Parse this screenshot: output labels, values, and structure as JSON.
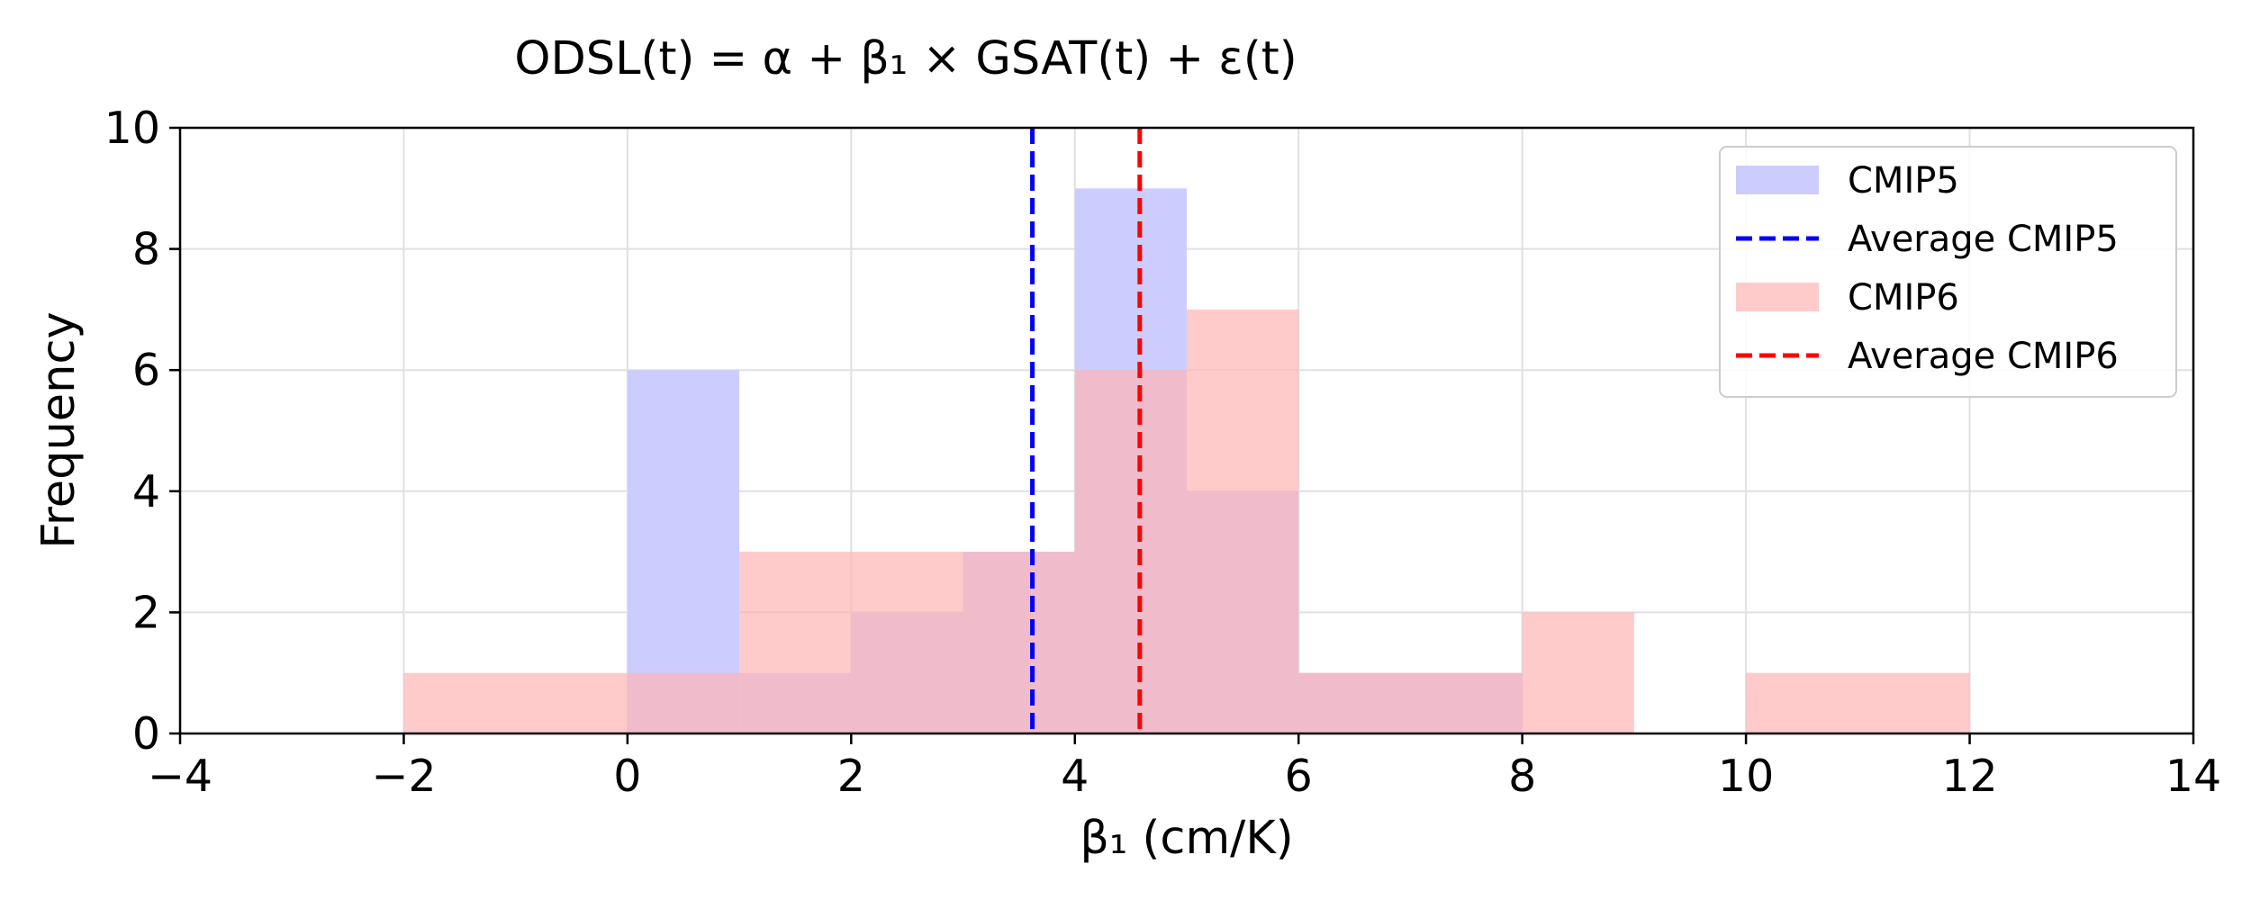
{
  "chart_data": {
    "type": "bar",
    "title": "ODSL(t) = α + β₁ × GSAT(t) + ε(t)",
    "xlabel": "β₁ (cm/K)",
    "ylabel": "Frequency",
    "xlim": [
      -4,
      14
    ],
    "ylim": [
      0,
      10
    ],
    "xticks": [
      "−4",
      "−2",
      "0",
      "2",
      "4",
      "6",
      "8",
      "10",
      "12",
      "14"
    ],
    "yticks": [
      "0",
      "2",
      "4",
      "6",
      "8",
      "10"
    ],
    "grid": true,
    "legend_position": "top-right",
    "series": [
      {
        "name": "CMIP5",
        "color": "#ccccff",
        "bins": [
          {
            "x0": 0,
            "x1": 1,
            "count": 6
          },
          {
            "x0": 1,
            "x1": 2,
            "count": 1
          },
          {
            "x0": 2,
            "x1": 3,
            "count": 2
          },
          {
            "x0": 3,
            "x1": 4,
            "count": 3
          },
          {
            "x0": 4,
            "x1": 5,
            "count": 9
          },
          {
            "x0": 5,
            "x1": 6,
            "count": 4
          },
          {
            "x0": 6,
            "x1": 8,
            "count": 1
          }
        ]
      },
      {
        "name": "CMIP6",
        "color": "#ffb3b3",
        "bins": [
          {
            "x0": -2,
            "x1": 0,
            "count": 1
          },
          {
            "x0": 0,
            "x1": 1,
            "count": 1
          },
          {
            "x0": 1,
            "x1": 3,
            "count": 3
          },
          {
            "x0": 3,
            "x1": 4,
            "count": 3
          },
          {
            "x0": 4,
            "x1": 5,
            "count": 6
          },
          {
            "x0": 5,
            "x1": 6,
            "count": 7
          },
          {
            "x0": 6,
            "x1": 8,
            "count": 1
          },
          {
            "x0": 8,
            "x1": 9,
            "count": 2
          },
          {
            "x0": 10,
            "x1": 12,
            "count": 1
          }
        ]
      }
    ],
    "averages": [
      {
        "name": "Average CMIP5",
        "value": 3.62,
        "color": "#0000ff"
      },
      {
        "name": "Average CMIP6",
        "value": 4.58,
        "color": "#ff0000"
      }
    ],
    "legend": [
      "CMIP5",
      "Average CMIP5",
      "CMIP6",
      "Average CMIP6"
    ]
  }
}
